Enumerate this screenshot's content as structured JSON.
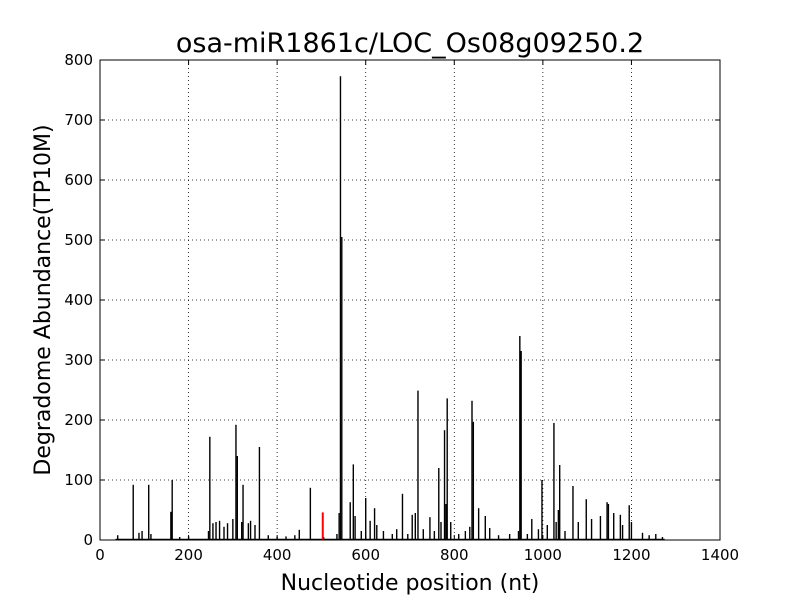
{
  "chart_data": {
    "type": "bar",
    "title": "osa-miR1861c/LOC_Os08g09250.2",
    "xlabel": "Nucleotide position (nt)",
    "ylabel": "Degradome Abundance(TP10M)",
    "xlim": [
      0,
      1400
    ],
    "ylim": [
      0,
      800
    ],
    "xticks": [
      0,
      200,
      400,
      600,
      800,
      1000,
      1200,
      1400
    ],
    "yticks": [
      0,
      100,
      200,
      300,
      400,
      500,
      600,
      700,
      800
    ],
    "grid": true,
    "grid_style": "dotted",
    "colors": {
      "series": "#000000",
      "highlight": "#ff0000"
    },
    "series": [
      {
        "values": [
          [
            40,
            8
          ],
          [
            75,
            92
          ],
          [
            88,
            12
          ],
          [
            95,
            15
          ],
          [
            110,
            92
          ],
          [
            115,
            10
          ],
          [
            160,
            47
          ],
          [
            163,
            100
          ],
          [
            180,
            5
          ],
          [
            200,
            6
          ],
          [
            245,
            15
          ],
          [
            248,
            172
          ],
          [
            255,
            28
          ],
          [
            262,
            30
          ],
          [
            270,
            32
          ],
          [
            280,
            22
          ],
          [
            288,
            28
          ],
          [
            300,
            35
          ],
          [
            307,
            192
          ],
          [
            310,
            140
          ],
          [
            320,
            30
          ],
          [
            323,
            92
          ],
          [
            335,
            28
          ],
          [
            340,
            32
          ],
          [
            350,
            25
          ],
          [
            360,
            155
          ],
          [
            380,
            8
          ],
          [
            400,
            5
          ],
          [
            420,
            6
          ],
          [
            440,
            8
          ],
          [
            450,
            17
          ],
          [
            475,
            87
          ],
          [
            505,
            5
          ],
          [
            535,
            10
          ],
          [
            540,
            45
          ],
          [
            543,
            773
          ],
          [
            546,
            505
          ],
          [
            565,
            63
          ],
          [
            572,
            126
          ],
          [
            576,
            40
          ],
          [
            590,
            15
          ],
          [
            600,
            70
          ],
          [
            610,
            32
          ],
          [
            620,
            53
          ],
          [
            625,
            25
          ],
          [
            640,
            15
          ],
          [
            660,
            10
          ],
          [
            670,
            18
          ],
          [
            683,
            77
          ],
          [
            695,
            10
          ],
          [
            705,
            42
          ],
          [
            712,
            45
          ],
          [
            718,
            249
          ],
          [
            730,
            18
          ],
          [
            745,
            38
          ],
          [
            755,
            15
          ],
          [
            765,
            120
          ],
          [
            770,
            30
          ],
          [
            778,
            183
          ],
          [
            781,
            60
          ],
          [
            784,
            236
          ],
          [
            792,
            30
          ],
          [
            810,
            10
          ],
          [
            825,
            15
          ],
          [
            835,
            22
          ],
          [
            840,
            232
          ],
          [
            843,
            197
          ],
          [
            855,
            53
          ],
          [
            870,
            40
          ],
          [
            880,
            20
          ],
          [
            900,
            8
          ],
          [
            925,
            10
          ],
          [
            945,
            15
          ],
          [
            948,
            340
          ],
          [
            951,
            315
          ],
          [
            965,
            10
          ],
          [
            975,
            35
          ],
          [
            990,
            18
          ],
          [
            998,
            100
          ],
          [
            1010,
            25
          ],
          [
            1025,
            195
          ],
          [
            1030,
            30
          ],
          [
            1035,
            50
          ],
          [
            1038,
            125
          ],
          [
            1050,
            15
          ],
          [
            1068,
            90
          ],
          [
            1080,
            30
          ],
          [
            1098,
            68
          ],
          [
            1110,
            35
          ],
          [
            1130,
            40
          ],
          [
            1145,
            63
          ],
          [
            1148,
            60
          ],
          [
            1160,
            45
          ],
          [
            1175,
            42
          ],
          [
            1180,
            25
          ],
          [
            1195,
            58
          ],
          [
            1200,
            30
          ],
          [
            1225,
            12
          ],
          [
            1240,
            8
          ],
          [
            1255,
            10
          ],
          [
            1270,
            5
          ]
        ]
      }
    ],
    "highlight": {
      "x": 503,
      "y": 46
    }
  }
}
